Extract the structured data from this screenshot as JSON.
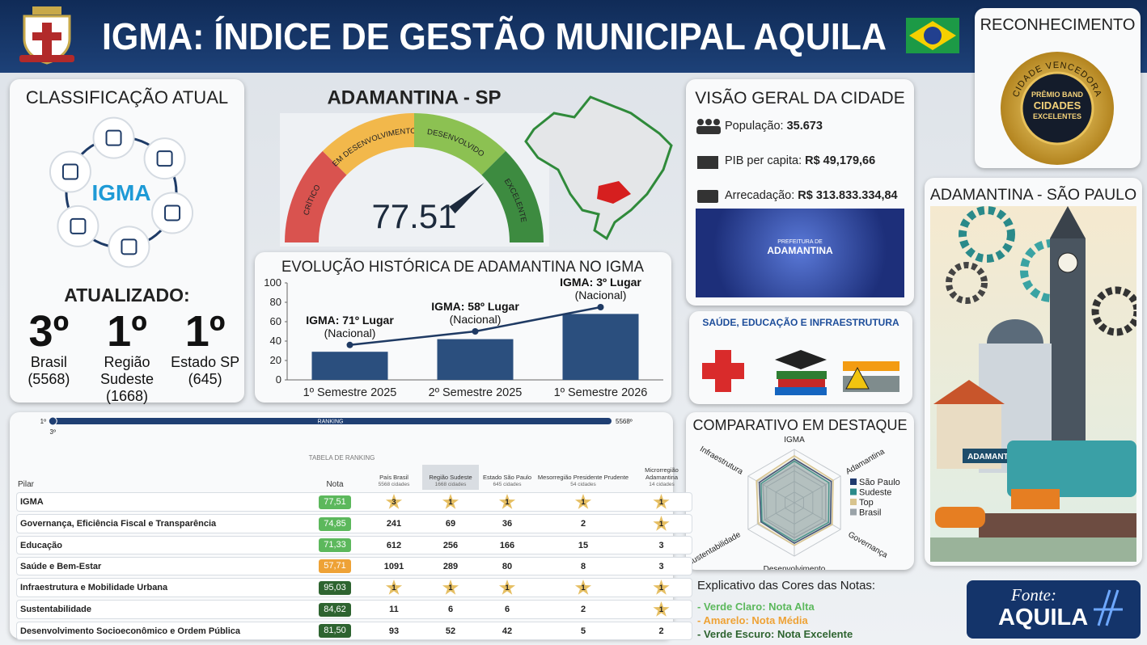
{
  "header": {
    "title": "IGMA: ÍNDICE DE GESTÃO MUNICIPAL AQUILA"
  },
  "recognition": {
    "title": "RECONHECIMENTO",
    "badge_ring": "CIDADE VENCEDORA",
    "badge_lines": [
      "PRÊMIO BAND",
      "CIDADES",
      "EXCELENTES"
    ]
  },
  "classification": {
    "title": "CLASSIFICAÇÃO ATUAL",
    "logo": "IGMA",
    "updated": "ATUALIZADO:",
    "ranks": [
      {
        "rank": "3º",
        "label": "Brasil",
        "detail": "(5568)"
      },
      {
        "rank": "1º",
        "label": "Região Sudeste",
        "detail": "(1668)"
      },
      {
        "rank": "1º",
        "label": "Estado SP",
        "detail": "(645)"
      }
    ]
  },
  "chart_data": [
    {
      "type": "gauge",
      "title": "ADAMANTINA - SP",
      "value": 77.51,
      "range": [
        0,
        100
      ],
      "bands": [
        {
          "label": "CRÍTICO",
          "color": "#d9534f"
        },
        {
          "label": "EM DESENVOLVIMENTO",
          "color": "#f2b84b"
        },
        {
          "label": "DESENVOLVIDO",
          "color": "#8cc152"
        },
        {
          "label": "EXCELENTE",
          "color": "#3d8b40"
        }
      ]
    },
    {
      "type": "bar",
      "title": "EVOLUÇÃO HISTÓRICA DE ADAMANTINA NO IGMA",
      "categories": [
        "1º Semestre 2025",
        "2º Semestre 2025",
        "1º Semestre 2026"
      ],
      "series": [
        {
          "type": "bar",
          "color": "#2b4f7e",
          "values": [
            29,
            42,
            68
          ]
        },
        {
          "type": "line",
          "color": "#1f3a63",
          "values": [
            36,
            50,
            75
          ],
          "annotations": [
            [
              "IGMA: 71º Lugar",
              "(Nacional)"
            ],
            [
              "IGMA: 58º Lugar",
              "(Nacional)"
            ],
            [
              "IGMA: 3º Lugar",
              "(Nacional)"
            ]
          ]
        }
      ],
      "ylim": [
        0,
        100
      ],
      "yticks": [
        0,
        20,
        40,
        60,
        80,
        100
      ]
    },
    {
      "type": "radar",
      "title": "COMPARATIVO EM DESTAQUE",
      "axes": [
        "IGMA",
        "Adamantina",
        "Governança",
        "Desenvolvimento",
        "Sustentabilidade",
        "Infraestrutura"
      ],
      "rlim": [
        0,
        100
      ],
      "series": [
        {
          "name": "São Paulo",
          "color": "#1f3a6e",
          "values": [
            82,
            80,
            78,
            76,
            72,
            76
          ]
        },
        {
          "name": "Sudeste",
          "color": "#2a8a8a",
          "values": [
            78,
            75,
            74,
            72,
            70,
            72
          ]
        },
        {
          "name": "Top",
          "color": "#d8c48e",
          "values": [
            88,
            84,
            82,
            80,
            78,
            82
          ]
        },
        {
          "name": "Brasil",
          "color": "#9aa3a8",
          "values": [
            70,
            68,
            68,
            66,
            64,
            68
          ]
        }
      ]
    }
  ],
  "overview": {
    "title": "VISÃO GERAL DA CIDADE",
    "items": [
      {
        "label": "População:",
        "value": "35.673"
      },
      {
        "label": "PIB per capita:",
        "value": "R$ 49,179,66"
      },
      {
        "label": "Arrecadação:",
        "value": "R$ 313.833.334,84"
      }
    ],
    "photo_caption": [
      "PREFEITURA DE",
      "ADAMANTINA"
    ]
  },
  "health": {
    "title": "SAÚDE, EDUCAÇÃO E INFRAESTRUTURA"
  },
  "city": {
    "title": "ADAMANTINA - SÃO PAULO",
    "sign": "ADAMANTINA"
  },
  "ranking": {
    "bar": {
      "label": "RANKING",
      "min": {
        "value": 1,
        "label": "1º"
      },
      "max": {
        "value": 5568,
        "label": "5568º"
      },
      "marker": {
        "value": 3,
        "label": "3º"
      }
    },
    "table_title": "TABELA DE RANKING",
    "columns": [
      {
        "title": "Pilar"
      },
      {
        "title": "Nota"
      },
      {
        "title": "País Brasil",
        "sub": "5568 cidades"
      },
      {
        "title": "Região Sudeste",
        "sub": "1668 cidades",
        "shaded": true
      },
      {
        "title": "Estado São Paulo",
        "sub": "645 cidades"
      },
      {
        "title": "Mesorregião Presidente Prudente",
        "sub": "54 cidades"
      },
      {
        "title": "Microrregião Adamantina",
        "sub": "14 cidades"
      }
    ],
    "rows": [
      {
        "cells": [
          "IGMA",
          "77,51",
          "3",
          "1",
          "1",
          "1",
          "1"
        ],
        "level": 0,
        "stars": [
          true,
          true,
          true,
          true,
          true
        ]
      },
      {
        "cells": [
          "Governança, Eficiência Fiscal e Transparência",
          "74,85",
          "241",
          "69",
          "36",
          "2",
          "1"
        ],
        "level": 0,
        "stars": [
          false,
          false,
          false,
          false,
          true
        ]
      },
      {
        "cells": [
          "Educação",
          "71,33",
          "612",
          "256",
          "166",
          "15",
          "3"
        ],
        "level": 0,
        "stars": [
          false,
          false,
          false,
          false,
          false
        ]
      },
      {
        "cells": [
          "Saúde e Bem-Estar",
          "57,71",
          "1091",
          "289",
          "80",
          "8",
          "3"
        ],
        "level": 1,
        "stars": [
          false,
          false,
          false,
          false,
          false
        ]
      },
      {
        "cells": [
          "Infraestrutura e Mobilidade Urbana",
          "95,03",
          "1",
          "1",
          "1",
          "1",
          "1"
        ],
        "level": 2,
        "stars": [
          true,
          true,
          true,
          true,
          true
        ]
      },
      {
        "cells": [
          "Sustentabilidade",
          "84,62",
          "11",
          "6",
          "6",
          "2",
          "1"
        ],
        "level": 2,
        "stars": [
          false,
          false,
          false,
          false,
          true
        ]
      },
      {
        "cells": [
          "Desenvolvimento Socioeconômico e Ordem Pública",
          "81,50",
          "93",
          "52",
          "42",
          "5",
          "2"
        ],
        "level": 2,
        "stars": [
          false,
          false,
          false,
          false,
          false
        ]
      }
    ]
  },
  "legend": {
    "title": "Explicativo das Cores das Notas:",
    "levels": [
      {
        "label": "- Verde Claro: Nota Alta",
        "color": "#5cb85c"
      },
      {
        "label": "- Amarelo: Nota Média",
        "color": "#eea236"
      },
      {
        "label": "- Verde Escuro: Nota Excelente",
        "color": "#2e6430"
      }
    ]
  },
  "source": {
    "label": "Fonte:",
    "name": "AQUILA"
  }
}
